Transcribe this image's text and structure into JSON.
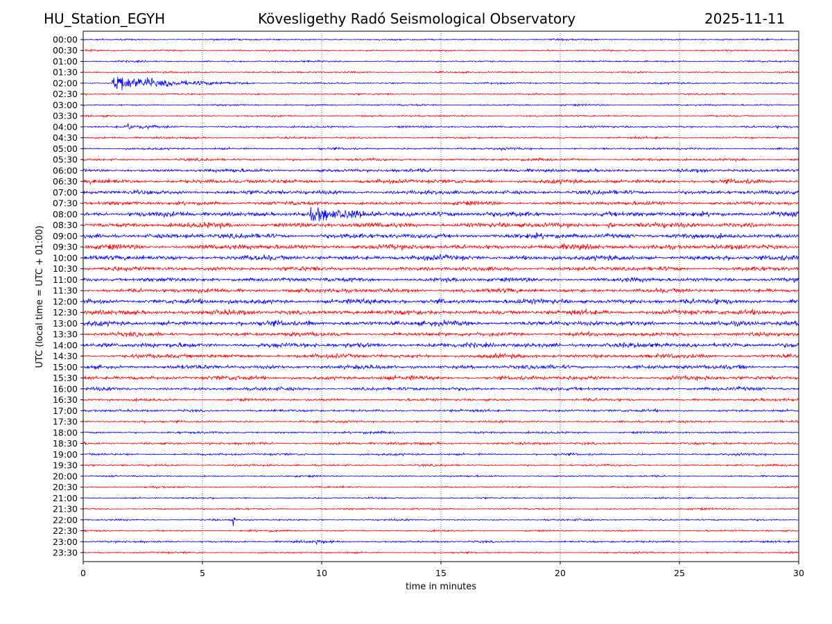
{
  "header": {
    "station": "HU_Station_EGYH",
    "title": "Kövesligethy Radó Seismological Observatory",
    "date": "2025-11-11"
  },
  "chart_data": {
    "type": "line",
    "title": "Kövesligethy Radó Seismological Observatory",
    "xlabel": "time in minutes",
    "ylabel": "UTC (local time = UTC + 01:00)",
    "xlim": [
      0,
      30
    ],
    "xticks": [
      "0",
      "5",
      "10",
      "15",
      "20",
      "25",
      "30"
    ],
    "grid": "vertical dotted lines at 5-minute intervals",
    "colors": {
      "even": "#0000ff",
      "odd": "#ff0000"
    },
    "rows": [
      "00:00",
      "00:30",
      "01:00",
      "01:30",
      "02:00",
      "02:30",
      "03:00",
      "03:30",
      "04:00",
      "04:30",
      "05:00",
      "05:30",
      "06:00",
      "06:30",
      "07:00",
      "07:30",
      "08:00",
      "08:30",
      "09:00",
      "09:30",
      "10:00",
      "10:30",
      "11:00",
      "11:30",
      "12:00",
      "12:30",
      "13:00",
      "13:30",
      "14:00",
      "14:30",
      "15:00",
      "15:30",
      "16:00",
      "16:30",
      "17:00",
      "17:30",
      "18:00",
      "18:30",
      "19:00",
      "19:30",
      "20:00",
      "20:30",
      "21:00",
      "21:30",
      "22:00",
      "22:30",
      "23:00",
      "23:30"
    ],
    "noise_level": [
      1,
      1,
      1,
      1,
      1,
      1,
      1,
      1,
      1.2,
      1.2,
      1.3,
      1.5,
      2,
      2.5,
      2.5,
      2.2,
      3,
      3,
      3,
      3,
      3,
      2.5,
      2.5,
      2.5,
      3,
      3,
      3,
      2.5,
      3,
      2.5,
      2.5,
      2.5,
      2,
      1.5,
      1.5,
      1.3,
      1.3,
      1.5,
      1.3,
      1.2,
      1,
      1,
      1,
      1,
      1,
      1,
      1.2,
      1
    ],
    "events": [
      {
        "row": "02:00",
        "start_min": 1.2,
        "end_min": 7.2,
        "peak": 12
      },
      {
        "row": "04:00",
        "start_min": 1.8,
        "end_min": 4.2,
        "peak": 4
      },
      {
        "row": "08:00",
        "start_min": 9.5,
        "end_min": 14.5,
        "peak": 8
      },
      {
        "row": "08:30",
        "start_min": 22.0,
        "end_min": 22.7,
        "peak": 5
      },
      {
        "row": "12:00",
        "start_min": 14.9,
        "end_min": 15.2,
        "peak": 5
      },
      {
        "row": "13:00",
        "start_min": 9.4,
        "end_min": 9.7,
        "peak": 6
      },
      {
        "row": "15:00",
        "start_min": 27.5,
        "end_min": 27.8,
        "peak": 5
      },
      {
        "row": "22:00",
        "start_min": 6.28,
        "end_min": 6.4,
        "peak": 9
      },
      {
        "row": "23:00",
        "start_min": 9.7,
        "end_min": 11.0,
        "peak": 3
      }
    ]
  }
}
